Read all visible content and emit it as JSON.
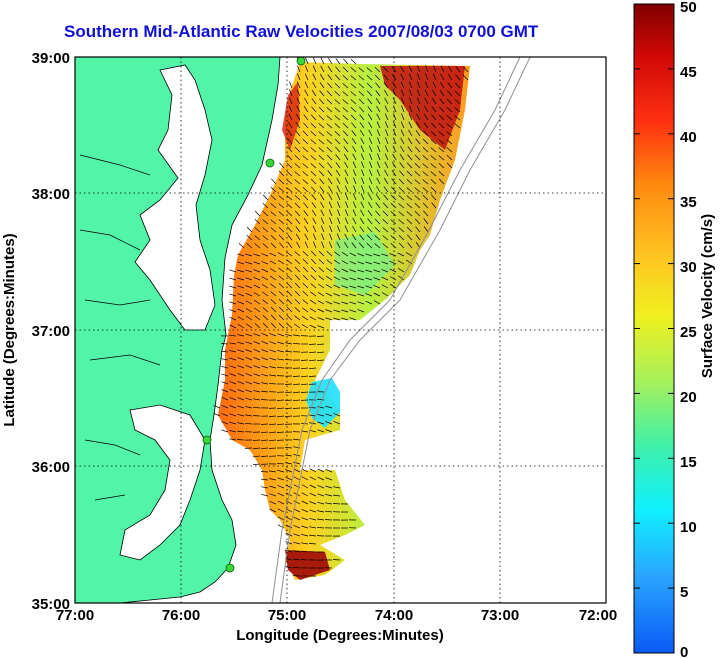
{
  "title": "Southern Mid-Atlantic Raw Velocities 2007/08/03 0700 GMT",
  "x_axis": {
    "label": "Longitude (Degrees:Minutes)",
    "ticks": [
      "77:00",
      "76:00",
      "75:00",
      "74:00",
      "73:00",
      "72:00"
    ]
  },
  "y_axis": {
    "label": "Latitude (Degrees:Minutes)",
    "ticks": [
      "39:00",
      "38:00",
      "37:00",
      "36:00",
      "35:00"
    ]
  },
  "colorbar": {
    "label": "Surface Velocity (cm/s)",
    "ticks": [
      "50",
      "45",
      "40",
      "35",
      "30",
      "25",
      "20",
      "15",
      "10",
      "5",
      "0"
    ],
    "min": 0,
    "max": 50
  },
  "colors": {
    "land": "#52f5a8",
    "title": "#1010d8",
    "station_marker": "#3bd63b"
  }
}
